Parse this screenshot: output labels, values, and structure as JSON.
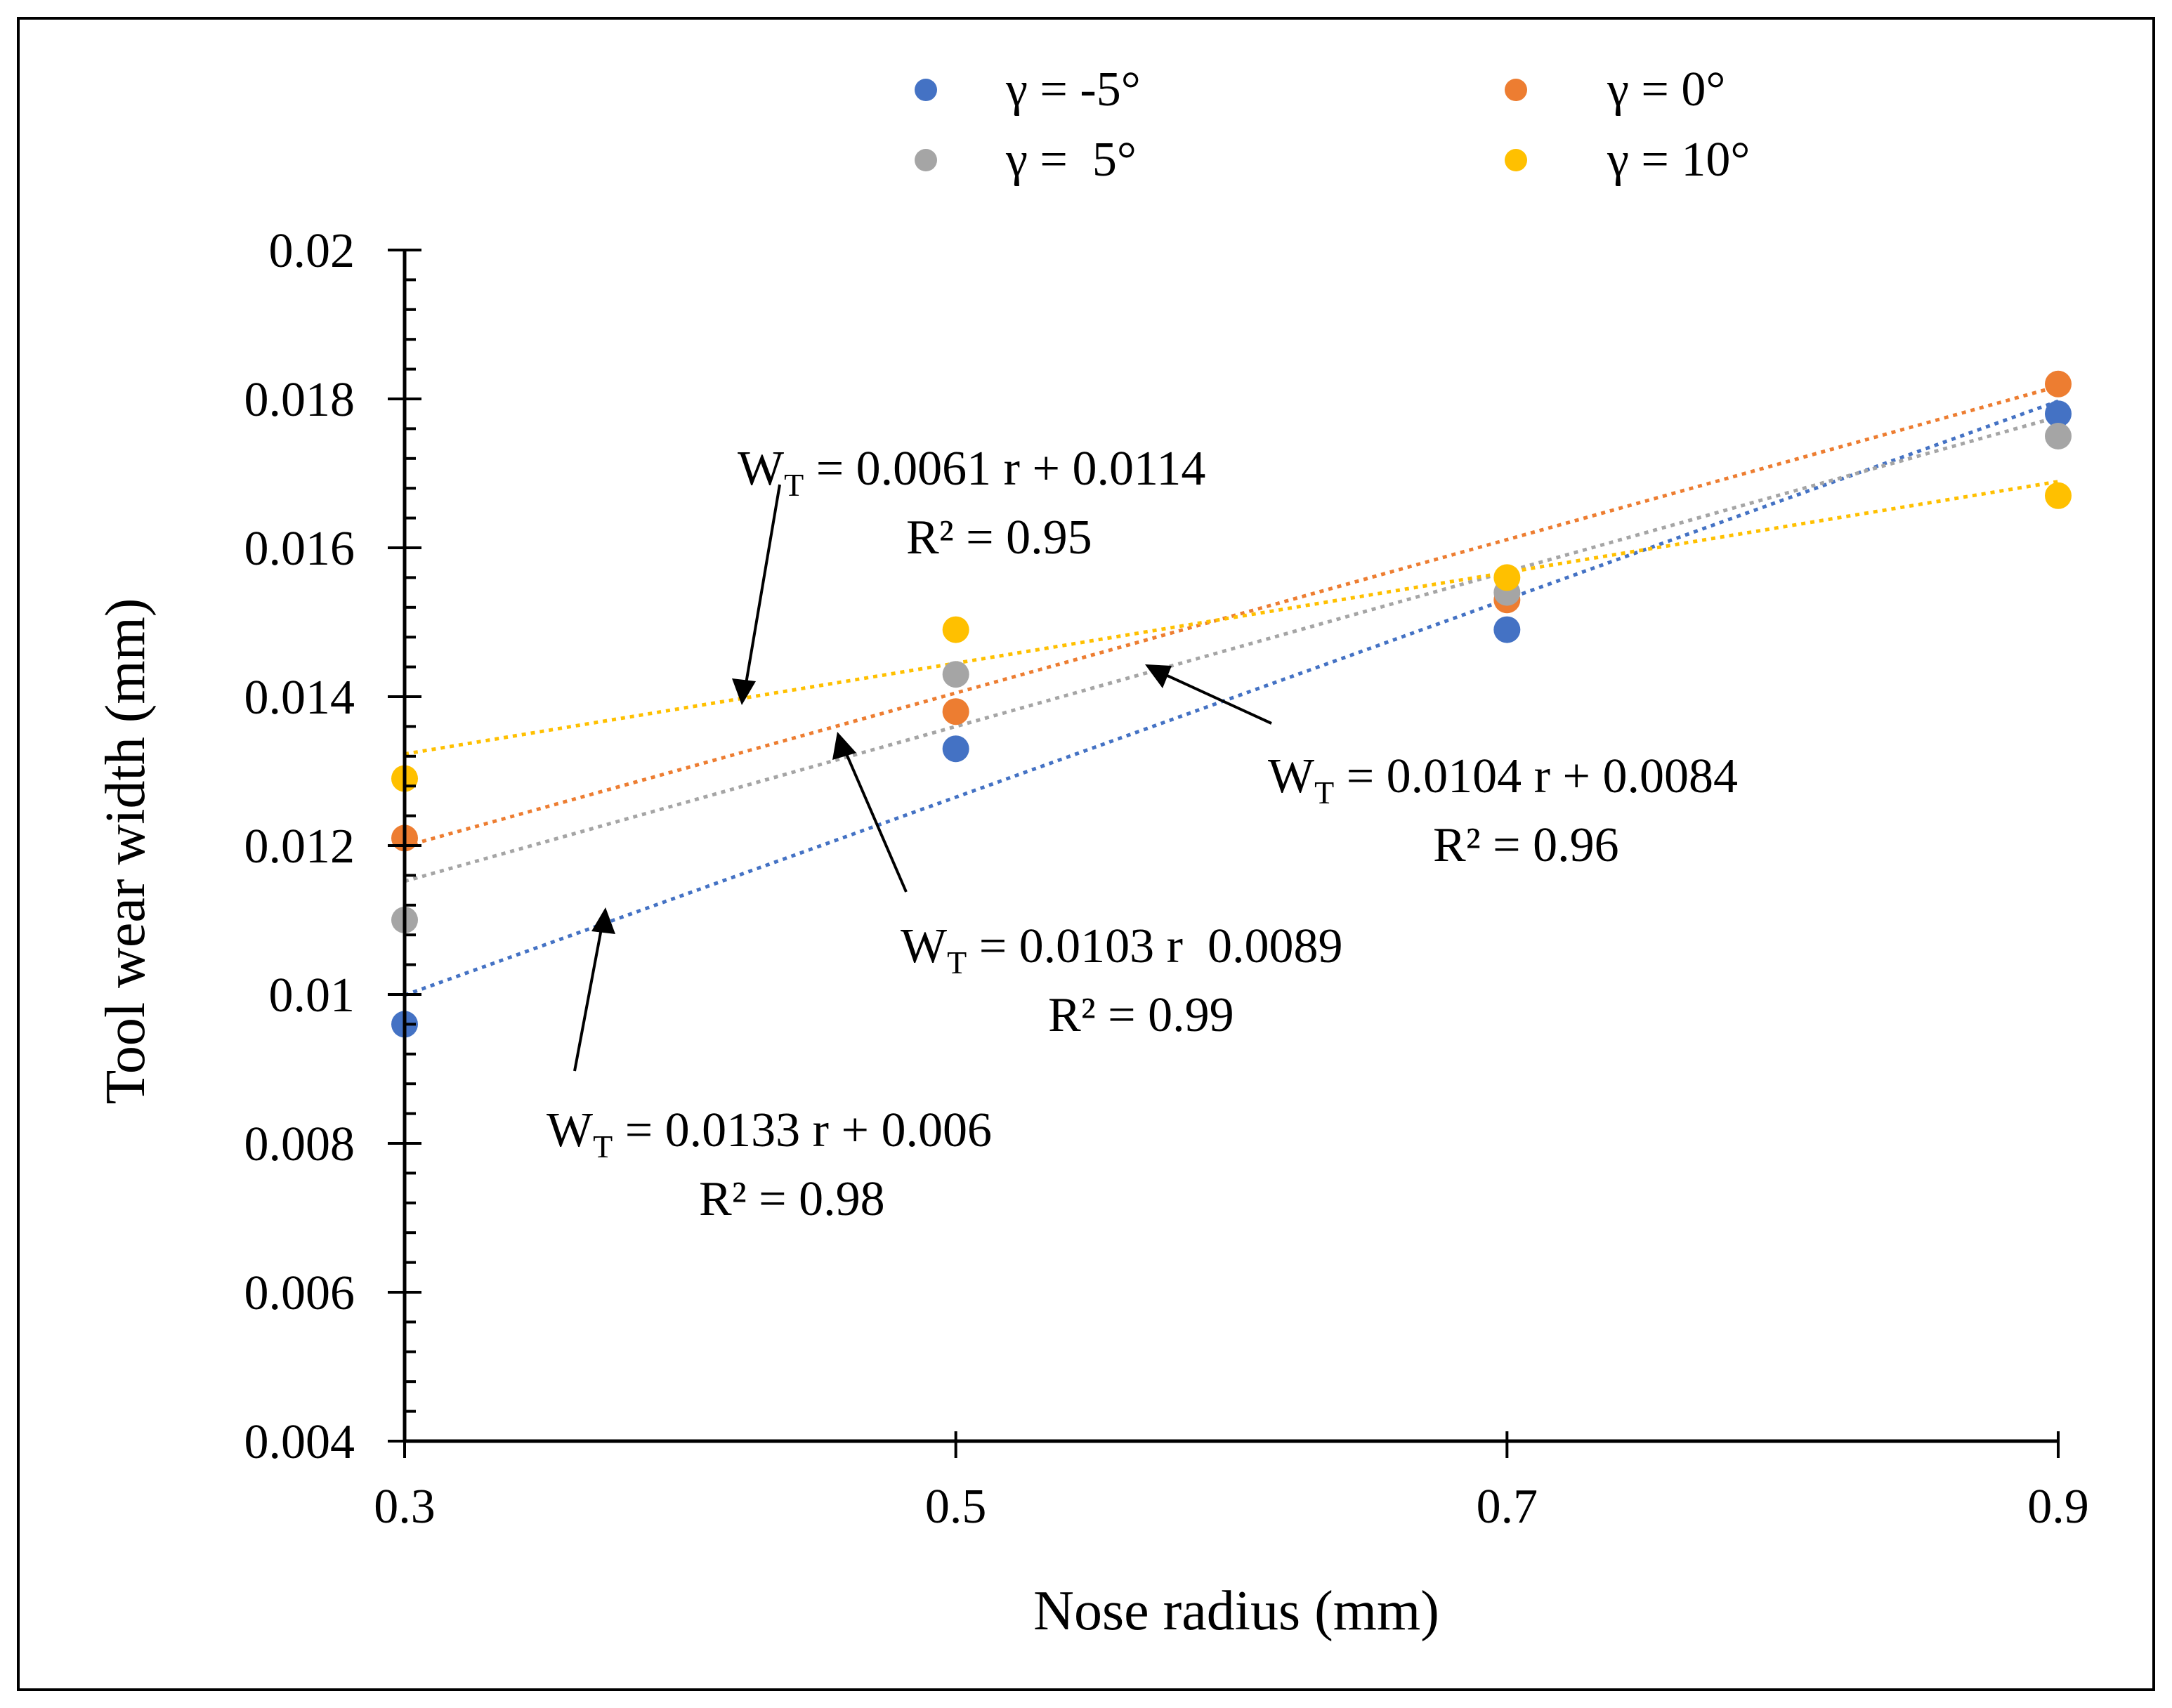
{
  "chart_data": {
    "type": "scatter",
    "xlabel": "Nose radius (mm)",
    "ylabel": "Tool wear width (mm)",
    "xlim": [
      0.3,
      0.9
    ],
    "ylim": [
      0.004,
      0.02
    ],
    "x_ticks": [
      0.3,
      0.5,
      0.7,
      0.9
    ],
    "x_tick_labels": [
      "0.3",
      "0.5",
      "0.7",
      "0.9"
    ],
    "y_ticks": [
      0.004,
      0.006,
      0.008,
      0.01,
      0.012,
      0.014,
      0.016,
      0.018,
      0.02
    ],
    "y_tick_labels": [
      "0.004",
      "0.006",
      "0.008",
      "0.01",
      "0.012",
      "0.014",
      "0.016",
      "0.018",
      "0.02"
    ],
    "legend_position": "top",
    "x": [
      0.3,
      0.5,
      0.7,
      0.9
    ],
    "series": [
      {
        "name": "γ = -5°",
        "color": "#4472C4",
        "values": [
          0.0096,
          0.0133,
          0.0149,
          0.0178
        ],
        "trend": {
          "slope": 0.0133,
          "intercept": 0.006
        }
      },
      {
        "name": "γ = 0°",
        "color": "#ED7D31",
        "values": [
          0.0121,
          0.0138,
          0.0153,
          0.0182
        ],
        "trend": {
          "slope": 0.0103,
          "intercept": 0.0089
        }
      },
      {
        "name": "γ =  5°",
        "color": "#A5A5A5",
        "values": [
          0.011,
          0.0143,
          0.0154,
          0.0175
        ],
        "trend": {
          "slope": 0.0104,
          "intercept": 0.0084
        }
      },
      {
        "name": "γ = 10°",
        "color": "#FFC000",
        "values": [
          0.0129,
          0.0149,
          0.0156,
          0.0167
        ],
        "trend": {
          "slope": 0.0061,
          "intercept": 0.0114
        }
      }
    ],
    "annotations": [
      {
        "series": 3,
        "eq_prefix": "W",
        "eq_sub": "T",
        "eq_rest": " = 0.0061 r + 0.0114",
        "r2": "R² = 0.95"
      },
      {
        "series": 2,
        "eq_prefix": "W",
        "eq_sub": "T",
        "eq_rest": " = 0.0104 r + 0.0084",
        "r2": "R² = 0.96"
      },
      {
        "series": 1,
        "eq_prefix": "W",
        "eq_sub": "T",
        "eq_rest": " = 0.0103 r  0.0089",
        "r2": "R² = 0.99"
      },
      {
        "series": 0,
        "eq_prefix": "W",
        "eq_sub": "T",
        "eq_rest": " = 0.0133 r + 0.006",
        "r2": "R² = 0.98"
      }
    ]
  }
}
